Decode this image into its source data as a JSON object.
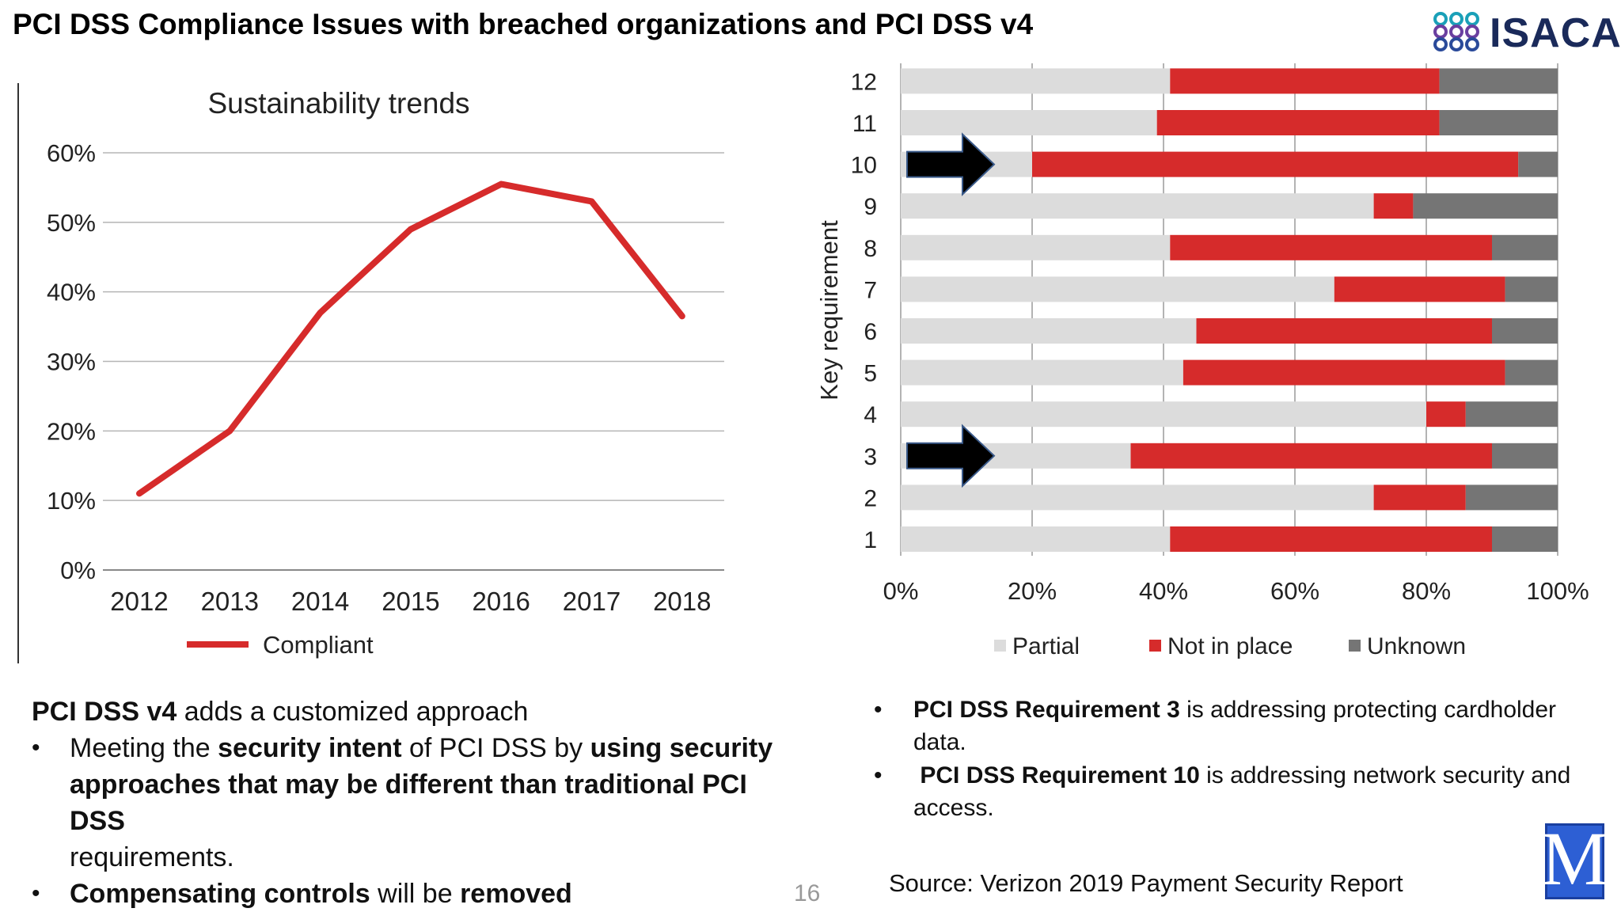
{
  "title": "PCI DSS Compliance Issues with breached organizations and PCI DSS v4",
  "logo": {
    "text": "ISACA",
    "icon": "isaca-knot-icon"
  },
  "charts": {
    "line": {
      "title": "Sustainability trends",
      "legend": "Compliant",
      "y_ticks": [
        "0%",
        "10%",
        "20%",
        "30%",
        "40%",
        "50%",
        "60%"
      ],
      "color": "#d62b2b"
    },
    "bar": {
      "ylabel": "Key requirement",
      "x_ticks": [
        "0%",
        "20%",
        "40%",
        "60%",
        "80%",
        "100%"
      ],
      "legend": [
        "Partial",
        "Not in place",
        "Unknown"
      ],
      "colors": {
        "partial": "#dcdcdc",
        "not_in_place": "#d62b2b",
        "unknown": "#757575"
      },
      "arrow_rows": [
        "10",
        "3"
      ]
    }
  },
  "chart_data": [
    {
      "type": "line",
      "title": "Sustainability trends",
      "x": [
        "2012",
        "2013",
        "2014",
        "2015",
        "2016",
        "2017",
        "2018"
      ],
      "series": [
        {
          "name": "Compliant",
          "values": [
            11,
            20,
            37,
            49,
            55.5,
            53,
            36.5
          ]
        }
      ],
      "ylim": [
        0,
        60
      ],
      "grid": true,
      "legend_position": "bottom"
    },
    {
      "type": "bar",
      "orientation": "horizontal",
      "stacked": true,
      "ylabel": "Key requirement",
      "categories": [
        "1",
        "2",
        "3",
        "4",
        "5",
        "6",
        "7",
        "8",
        "9",
        "10",
        "11",
        "12"
      ],
      "series": [
        {
          "name": "Partial",
          "values": [
            41,
            72,
            35,
            80,
            43,
            45,
            66,
            41,
            72,
            20,
            39,
            41
          ]
        },
        {
          "name": "Not in place",
          "values": [
            49,
            14,
            55,
            6,
            49,
            45,
            26,
            49,
            6,
            74,
            43,
            41
          ]
        },
        {
          "name": "Unknown",
          "values": [
            10,
            14,
            10,
            14,
            8,
            10,
            8,
            10,
            22,
            6,
            18,
            18
          ]
        }
      ],
      "xlim": [
        0,
        100
      ],
      "grid": true,
      "legend_position": "bottom"
    }
  ],
  "left_text": {
    "intro_bold": "PCI DSS v4",
    "intro_rest": " adds a customized approach",
    "bullet1": {
      "p1": "Meeting the ",
      "b1": "security intent",
      "p2": " of PCI DSS by ",
      "b2": "using security",
      "line2": "approaches that may be different than traditional PCI DSS",
      "line3": "requirements."
    },
    "bullet2": {
      "b1": "Compensating controls",
      "p1": " will be ",
      "b2": "removed"
    }
  },
  "right_text": {
    "bullet1": {
      "bold": "PCI DSS Requirement 3",
      "rest": " is addressing protecting cardholder",
      "line2": "data."
    },
    "bullet2": {
      "bold": "PCI DSS Requirement 10",
      "rest": " is addressing network security and",
      "line2": "access."
    }
  },
  "page_number": "16",
  "source": "Source: Verizon 2019 Payment Security Report",
  "corner_logo": {
    "text": "M",
    "icon": "m-logo-icon"
  }
}
